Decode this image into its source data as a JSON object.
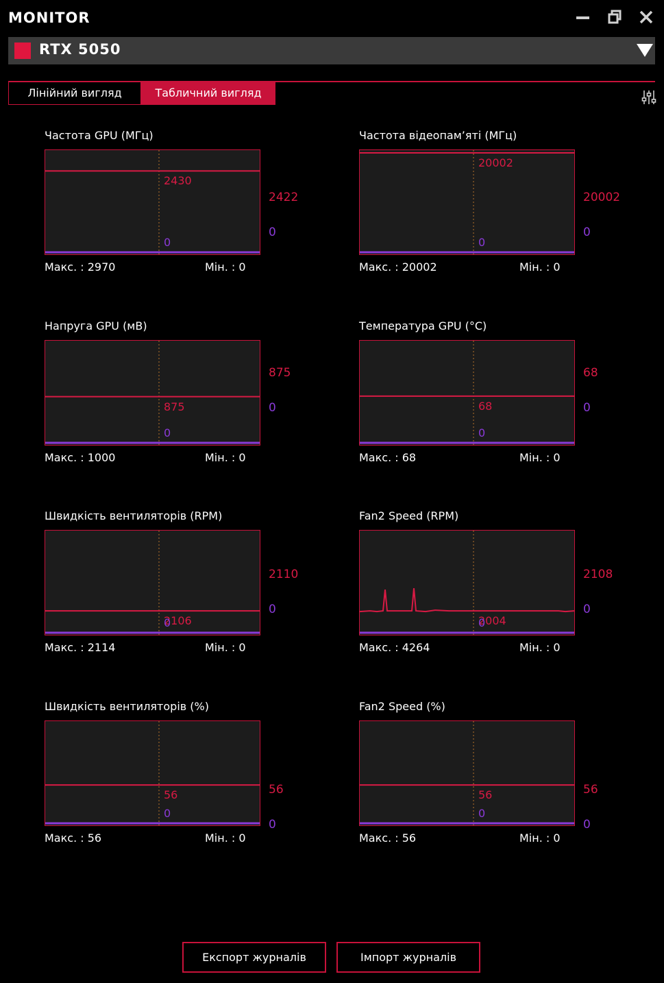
{
  "app": {
    "title": "MONITOR"
  },
  "window_controls": [
    "minimize-icon",
    "restore-icon",
    "close-icon"
  ],
  "device": {
    "name": "RTX 5050",
    "accent": "#e0163e"
  },
  "tabs": [
    {
      "label": "Лінійний вигляд",
      "active": false
    },
    {
      "label": "Табличний вигляд",
      "active": true
    }
  ],
  "colors": {
    "accent": "#c8123a",
    "line": "#d81a44",
    "baseline": "#8a3ad8",
    "graph_bg": "#1c1c1c"
  },
  "panels": [
    {
      "title": "Частота GPU (МГц)",
      "current": "2430",
      "right_value": "2422",
      "right_zero": "0",
      "zero_label": "0",
      "max_label": "Макс. : 2970",
      "min_label": "Мін. : 0",
      "level": 0.818,
      "spikes": false
    },
    {
      "title": "Частота відеопам’яті (МГц)",
      "current": "20002",
      "right_value": "20002",
      "right_zero": "0",
      "zero_label": "0",
      "max_label": "Макс. : 20002",
      "min_label": "Мін. : 0",
      "level": 1.0,
      "spikes": false
    },
    {
      "title": "Напруга GPU (мВ)",
      "current": "875",
      "right_value": "875",
      "right_zero": "0",
      "zero_label": "0",
      "max_label": "Макс. : 1000",
      "min_label": "Мін. : 0",
      "level": 0.465,
      "spikes": false
    },
    {
      "title": "Температура GPU (°C)",
      "current": "68",
      "right_value": "68",
      "right_zero": "0",
      "zero_label": "0",
      "max_label": "Макс. : 68",
      "min_label": "Мін. : 0",
      "level": 0.47,
      "spikes": false
    },
    {
      "title": "Швидкість вентиляторів (RPM)",
      "current": "2106",
      "right_value": "2110",
      "right_zero": "0",
      "zero_label": "0",
      "max_label": "Макс. : 2114",
      "min_label": "Мін. : 0",
      "level": 0.22,
      "spikes": false
    },
    {
      "title": "Fan2 Speed (RPM)",
      "current": "2004",
      "right_value": "2108",
      "right_zero": "0",
      "zero_label": "0",
      "max_label": "Макс. : 4264",
      "min_label": "Мін. : 0",
      "level": 0.22,
      "spikes": true
    },
    {
      "title": "Швидкість вентиляторів (%)",
      "current": "56",
      "right_value": "56",
      "right_zero": "0",
      "zero_label": "0",
      "max_label": "Макс. : 56",
      "min_label": "Мін. : 0",
      "level": 0.385,
      "spikes": false
    },
    {
      "title": "Fan2 Speed (%)",
      "current": "56",
      "right_value": "56",
      "right_zero": "0",
      "zero_label": "0",
      "max_label": "Макс. : 56",
      "min_label": "Мін. : 0",
      "level": 0.385,
      "spikes": false
    }
  ],
  "footer": {
    "export_label": "Експорт журналів",
    "import_label": "Імпорт журналів"
  }
}
